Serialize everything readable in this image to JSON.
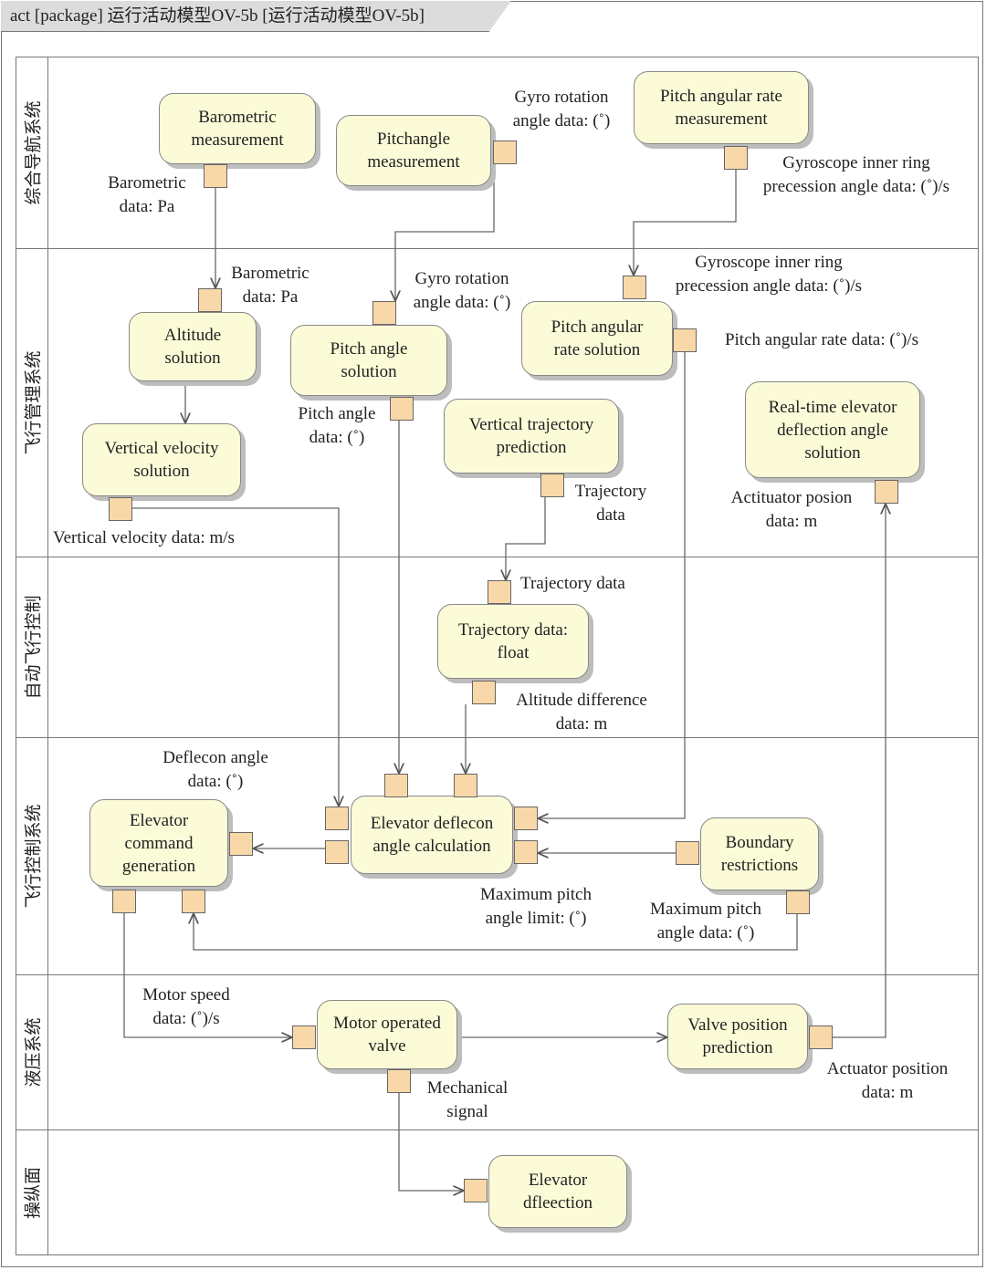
{
  "title": "act [package] 运行活动模型OV-5b [运行活动模型OV-5b]",
  "lanes": [
    "综合导航系统",
    "飞行管理系统",
    "自动飞行控制",
    "飞行控制系统",
    "液压系统",
    "操纵面"
  ],
  "nodes": {
    "baro": "Barometric\nmeasurement",
    "pitchm": "Pitchangle\nmeasurement",
    "ratem": "Pitch angular rate\nmeasurement",
    "alt": "Altitude\nsolution",
    "pitchs": "Pitch angle\nsolution",
    "rates": "Pitch angular\nrate solution",
    "vvs": "Vertical velocity\nsolution",
    "vtp": "Vertical trajectory\nprediction",
    "rted": "Real-time elevator\ndeflection angle\nsolution",
    "tdf": "Trajectory data:\nfloat",
    "edac": "Elevator deflecon\nangle calculation",
    "ecg": "Elevator\ncommand\ngeneration",
    "br": "Boundary\nrestrictions",
    "mov": "Motor operated\nvalve",
    "vpp": "Valve position\nprediction",
    "ed": "Elevator\ndfleection"
  },
  "labels": {
    "l1": "Barometric\ndata: Pa",
    "l2": "Gyro rotation\nangle data: (˚)",
    "l3": "Gyroscope inner ring\nprecession angle data: (˚)/s",
    "l4": "Barometric\ndata: Pa",
    "l5": "Gyro rotation\nangle data: (˚)",
    "l6": "Gyroscope inner ring\nprecession angle data: (˚)/s",
    "l7": "Pitch angular rate data: (˚)/s",
    "l8": "Pitch angle\ndata: (˚)",
    "l9": "Trajectory\ndata",
    "l10": "Actituator posion\ndata: m",
    "l11": "Vertical velocity data: m/s",
    "l12": "Trajectory data",
    "l13": "Altitude difference\ndata: m",
    "l14": "Deflecon angle\ndata: (˚)",
    "l15": "Maximum pitch\nangle limit: (˚)",
    "l16": "Maximum pitch\nangle data: (˚)",
    "l17": "Motor speed\ndata: (˚)/s",
    "l18": "Mechanical\nsignal",
    "l19": "Actuator position\ndata: m"
  },
  "colors": {
    "node_fill": "#fbfbd8",
    "pin_fill": "#f8d8a8",
    "header": "#dcdcdc"
  }
}
